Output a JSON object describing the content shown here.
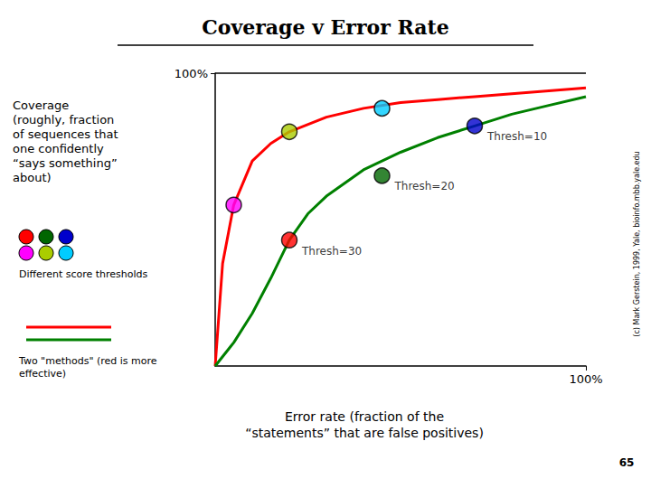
{
  "chart_data": {
    "type": "line",
    "title": "Coverage v Error Rate",
    "x_label": "Error rate (fraction of the\n“statements” that are false positives)",
    "y_label": "Coverage\n(roughly, fraction\nof sequences that\none confidently\n“says something”\nabout)",
    "xlim": [
      0,
      100
    ],
    "ylim": [
      0,
      100
    ],
    "xticks": [
      {
        "value": 100,
        "label": "100%"
      }
    ],
    "yticks": [
      {
        "value": 100,
        "label": "100%"
      }
    ],
    "grid": false,
    "series": [
      {
        "type": "line",
        "color": "red",
        "x": [
          0,
          2,
          5,
          10,
          15,
          20,
          30,
          40,
          50,
          60,
          70,
          80,
          90,
          100
        ],
        "values": [
          0,
          35,
          55,
          70,
          76,
          80,
          85,
          88,
          90,
          91,
          92,
          93,
          94,
          95
        ]
      },
      {
        "type": "line",
        "color": "green",
        "x": [
          0,
          5,
          10,
          15,
          20,
          25,
          30,
          40,
          50,
          60,
          70,
          80,
          90,
          100
        ],
        "values": [
          0,
          8,
          18,
          30,
          43,
          52,
          58,
          67,
          73,
          78,
          82,
          86,
          89,
          92
        ]
      },
      {
        "type": "scatter",
        "marker": "circle",
        "x": [
          20,
          45,
          70,
          5,
          20,
          45
        ],
        "values": [
          43,
          65,
          82,
          55,
          80,
          88
        ],
        "colors": [
          "#ff0000",
          "#006600",
          "#0000cc",
          "#ff00ff",
          "#aacc00",
          "#00ccff"
        ]
      }
    ],
    "annotations": [
      {
        "text": "Thresh=10",
        "x": 70,
        "y": 82
      },
      {
        "text": "Thresh=20",
        "x": 45,
        "y": 65
      },
      {
        "text": "Thresh=30",
        "x": 20,
        "y": 43
      }
    ],
    "dots_note": "Different score thresholds",
    "lines_note": "Two \"methods\" (red is more\neffective)",
    "watermark": "(c) Mark Gerstein, 1999, Yale, bioinfo.mbb.yale.edu",
    "slide_number": "65"
  }
}
